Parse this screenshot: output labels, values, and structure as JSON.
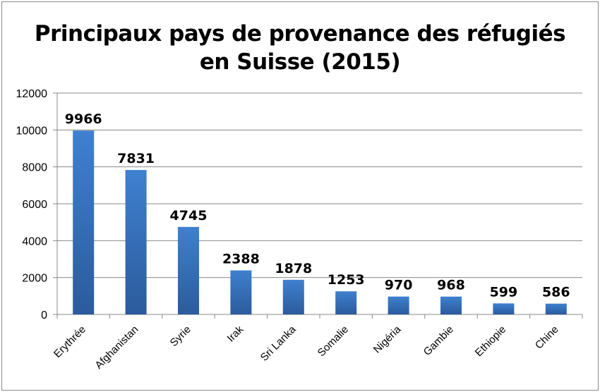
{
  "chart_data": {
    "type": "bar",
    "title_lines": [
      "Principaux pays de provenance des réfugiés",
      "en Suisse (2015)"
    ],
    "categories": [
      "Erythrée",
      "Afghanistan",
      "Syrie",
      "Irak",
      "Sri Lanka",
      "Somalie",
      "Nigéria",
      "Gambie",
      "Ethiopie",
      "Chine"
    ],
    "values": [
      9966,
      7831,
      4745,
      2388,
      1878,
      1253,
      970,
      968,
      599,
      586
    ],
    "xlabel": "",
    "ylabel": "",
    "ylim": [
      0,
      12000
    ],
    "yticks": [
      0,
      2000,
      4000,
      6000,
      8000,
      10000,
      12000
    ],
    "grid": true,
    "legend": "none",
    "colors": {
      "bar_top": "#3f80d0",
      "bar_bottom": "#2b5b9c",
      "grid": "#888888"
    }
  }
}
